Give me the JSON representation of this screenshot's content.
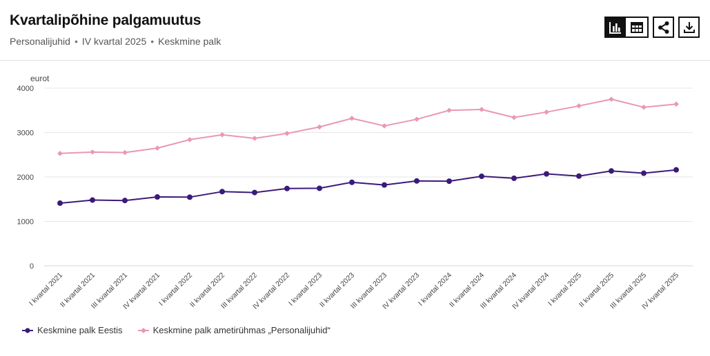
{
  "header": {
    "title": "Kvartalipõhine palgamuutus",
    "subtitle_parts": [
      "Personalijuhid",
      "IV kvartal 2025",
      "Keskmine palk"
    ],
    "separator": "•"
  },
  "toolbar": {
    "chart_view_icon": "bar-chart-icon",
    "table_view_icon": "table-icon",
    "share_icon": "share-icon",
    "download_icon": "download-icon"
  },
  "chart_data": {
    "type": "line",
    "ylabel": "eurot",
    "ylim": [
      0,
      4000
    ],
    "yticks": [
      0,
      1000,
      2000,
      3000,
      4000
    ],
    "grid": true,
    "legend_position": "bottom-left",
    "categories": [
      "I kvartal 2021",
      "II kvartal 2021",
      "III kvartal 2021",
      "IV kvartal 2021",
      "I kvartal 2022",
      "II kvartal 2022",
      "III kvartal 2022",
      "IV kvartal 2022",
      "I kvartal 2023",
      "II kvartal 2023",
      "III kvartal 2023",
      "IV kvartal 2023",
      "I kvartal 2024",
      "II kvartal 2024",
      "III kvartal 2024",
      "IV kvartal 2024",
      "I kvartal 2025",
      "II kvartal 2025",
      "III kvartal 2025",
      "IV kvartal 2025"
    ],
    "series": [
      {
        "name": "Keskmine palk Eestis",
        "color": "#3b1a78",
        "marker": "circle",
        "values": [
          1410,
          1480,
          1470,
          1550,
          1545,
          1670,
          1650,
          1740,
          1745,
          1880,
          1820,
          1910,
          1905,
          2015,
          1970,
          2070,
          2020,
          2135,
          2085,
          2160
        ]
      },
      {
        "name": "Keskmine palk ametirühmas „Personalijuhid“",
        "color": "#ea96b6",
        "marker": "diamond",
        "values": [
          2530,
          2560,
          2550,
          2650,
          2840,
          2950,
          2870,
          2980,
          3125,
          3320,
          3150,
          3300,
          3500,
          3520,
          3340,
          3460,
          3600,
          3750,
          3570,
          3640
        ]
      }
    ]
  }
}
